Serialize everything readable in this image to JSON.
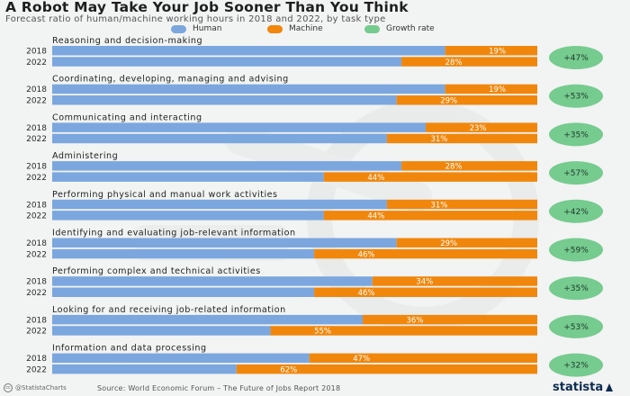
{
  "header": {
    "title": "A Robot May Take Your Job Sooner Than You Think",
    "subtitle": "Forecast ratio of human/machine working hours in 2018 and 2022, by task type"
  },
  "legend": {
    "human": "Human",
    "machine": "Machine",
    "growth": "Growth rate"
  },
  "colors": {
    "human": "#7ba7de",
    "machine": "#f0870c",
    "growth": "#76cb8f",
    "background": "#f2f3f3",
    "text": "#2b2b2b"
  },
  "footer": {
    "credit": "@StatistaCharts",
    "source": "Source: World Economic Forum – The Future of Jobs Report 2018",
    "brand": "statista"
  },
  "chart_data": {
    "type": "bar",
    "orientation": "horizontal",
    "stacked": true,
    "unit": "%",
    "years": [
      "2018",
      "2022"
    ],
    "groups": [
      {
        "name": "Reasoning and decision-making",
        "machine": [
          19,
          28
        ],
        "growth": "+47%"
      },
      {
        "name": "Coordinating, developing, managing and advising",
        "machine": [
          19,
          29
        ],
        "growth": "+53%"
      },
      {
        "name": "Communicating and interacting",
        "machine": [
          23,
          31
        ],
        "growth": "+35%"
      },
      {
        "name": "Administering",
        "machine": [
          28,
          44
        ],
        "growth": "+57%"
      },
      {
        "name": "Performing physical and manual work activities",
        "machine": [
          31,
          44
        ],
        "growth": "+42%"
      },
      {
        "name": "Identifying and evaluating job-relevant information",
        "machine": [
          29,
          46
        ],
        "growth": "+59%"
      },
      {
        "name": "Performing complex and technical activities",
        "machine": [
          34,
          46
        ],
        "growth": "+35%"
      },
      {
        "name": "Looking for and receiving job-related information",
        "machine": [
          36,
          55
        ],
        "growth": "+53%"
      },
      {
        "name": "Information and data processing",
        "machine": [
          47,
          62
        ],
        "growth": "+32%"
      }
    ],
    "xlim": [
      0,
      100
    ],
    "legend_position": "top"
  }
}
